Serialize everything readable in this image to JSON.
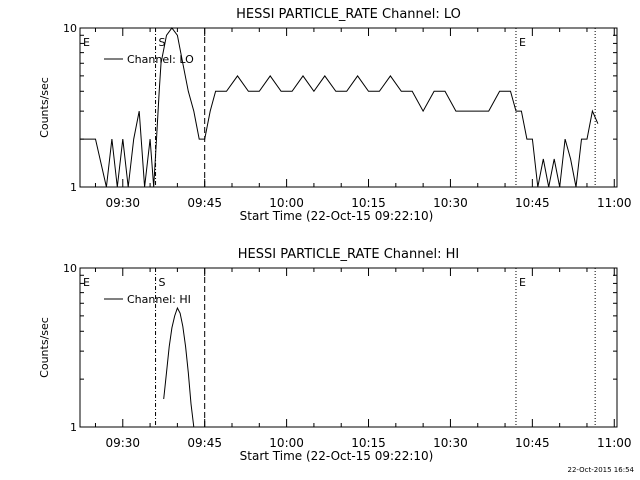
{
  "footer_stamp": "22-Oct-2015 16:54",
  "chart_data": [
    {
      "type": "line",
      "title": "HESSI PARTICLE_RATE Channel: LO",
      "xlabel": "Start Time (22-Oct-15 09:22:10)",
      "ylabel": "Counts/sec",
      "yscale": "log",
      "ylim": [
        1,
        10
      ],
      "xlim": [
        "09:22:10",
        "11:00:30"
      ],
      "x_ticks": [
        "09:30",
        "09:45",
        "10:00",
        "10:15",
        "10:30",
        "10:45",
        "11:00"
      ],
      "y_ticks": [
        "1",
        "10"
      ],
      "legend": {
        "position": "top-left",
        "entries": [
          "Channel: LO"
        ]
      },
      "markers": [
        {
          "label": "E",
          "time": "09:22:10",
          "style": "none"
        },
        {
          "label": "S",
          "time": "09:36:00",
          "style": "dash-dot"
        },
        {
          "label": "",
          "time": "09:45:00",
          "style": "dashed"
        },
        {
          "label": "E",
          "time": "10:42:00",
          "style": "dotted"
        },
        {
          "label": "",
          "time": "10:56:30",
          "style": "dotted"
        }
      ],
      "series": [
        {
          "name": "Channel: LO",
          "x": [
            "09:22:10",
            "09:25:00",
            "09:27:00",
            "09:28:00",
            "09:29:00",
            "09:30:00",
            "09:31:00",
            "09:32:00",
            "09:33:00",
            "09:34:00",
            "09:35:00",
            "09:35:40",
            "09:36:10",
            "09:36:40",
            "09:37:00",
            "09:38:00",
            "09:39:00",
            "09:40:00",
            "09:41:00",
            "09:42:00",
            "09:43:00",
            "09:44:00",
            "09:45:00",
            "09:46:00",
            "09:47:00",
            "09:49:00",
            "09:51:00",
            "09:53:00",
            "09:55:00",
            "09:57:00",
            "09:59:00",
            "10:01:00",
            "10:03:00",
            "10:05:00",
            "10:07:00",
            "10:09:00",
            "10:11:00",
            "10:13:00",
            "10:15:00",
            "10:17:00",
            "10:19:00",
            "10:21:00",
            "10:23:00",
            "10:25:00",
            "10:27:00",
            "10:29:00",
            "10:31:00",
            "10:33:00",
            "10:35:00",
            "10:37:00",
            "10:39:00",
            "10:41:00",
            "10:42:00",
            "10:43:00",
            "10:44:00",
            "10:45:00",
            "10:46:00",
            "10:47:00",
            "10:48:00",
            "10:49:00",
            "10:50:00",
            "10:51:00",
            "10:52:00",
            "10:53:00",
            "10:54:00",
            "10:55:00",
            "10:56:00",
            "10:57:00"
          ],
          "values": [
            2,
            2,
            1,
            2,
            1,
            2,
            1,
            2,
            3,
            1,
            2,
            1,
            2,
            4,
            6,
            9,
            11,
            9,
            6,
            4,
            3,
            2,
            2,
            3,
            4,
            4,
            5,
            4,
            4,
            5,
            4,
            4,
            5,
            4,
            5,
            4,
            4,
            5,
            4,
            4,
            5,
            4,
            4,
            3,
            4,
            4,
            3,
            3,
            3,
            3,
            4,
            4,
            3,
            3,
            2,
            2,
            1,
            1.5,
            1,
            1.5,
            1,
            2,
            1.5,
            1,
            2,
            2,
            3,
            2.5
          ]
        }
      ]
    },
    {
      "type": "line",
      "title": "HESSI PARTICLE_RATE Channel: HI",
      "xlabel": "Start Time (22-Oct-15 09:22:10)",
      "ylabel": "Counts/sec",
      "yscale": "log",
      "ylim": [
        1,
        10
      ],
      "xlim": [
        "09:22:10",
        "11:00:30"
      ],
      "x_ticks": [
        "09:30",
        "09:45",
        "10:00",
        "10:15",
        "10:30",
        "10:45",
        "11:00"
      ],
      "y_ticks": [
        "1",
        "10"
      ],
      "legend": {
        "position": "top-left",
        "entries": [
          "Channel: HI"
        ]
      },
      "markers": [
        {
          "label": "E",
          "time": "09:22:10",
          "style": "none"
        },
        {
          "label": "S",
          "time": "09:36:00",
          "style": "dash-dot"
        },
        {
          "label": "",
          "time": "09:45:00",
          "style": "dashed"
        },
        {
          "label": "E",
          "time": "10:42:00",
          "style": "dotted"
        },
        {
          "label": "",
          "time": "10:56:30",
          "style": "dotted"
        }
      ],
      "series": [
        {
          "name": "Channel: HI",
          "x": [
            "09:37:30",
            "09:38:00",
            "09:38:30",
            "09:39:00",
            "09:39:30",
            "09:40:00",
            "09:40:30",
            "09:41:00",
            "09:41:30",
            "09:42:00",
            "09:42:30",
            "09:43:00"
          ],
          "values": [
            1.5,
            2.2,
            3.2,
            4.2,
            5.0,
            5.6,
            5.2,
            4.3,
            3.2,
            2.2,
            1.4,
            0.9
          ]
        }
      ]
    }
  ]
}
